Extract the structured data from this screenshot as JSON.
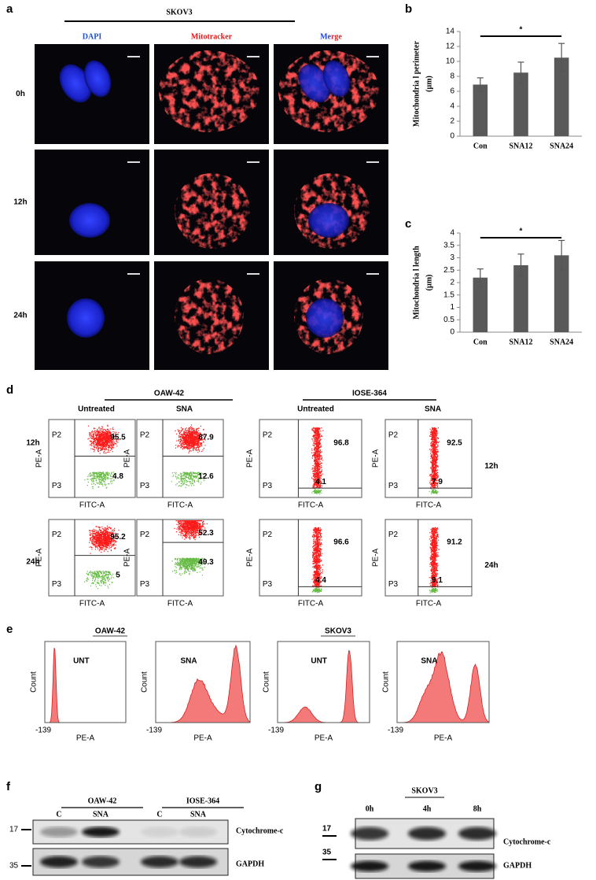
{
  "panel_labels": [
    "a",
    "b",
    "c",
    "d",
    "e",
    "f",
    "g"
  ],
  "microscopy": {
    "cell_line": "SKOV3",
    "channels": [
      "DAPI",
      "Mitotracker",
      "Merge"
    ],
    "times": [
      "0h",
      "12h",
      "24h"
    ]
  },
  "chart_data": [
    {
      "type": "bar",
      "y_label": [
        "Mitochondria l perimeter",
        "(µm)"
      ],
      "categories": [
        "Con",
        "SNA12",
        "SNA24"
      ],
      "values": [
        6.9,
        8.5,
        10.5
      ],
      "errors": [
        0.9,
        1.4,
        1.9
      ],
      "color": "#595959",
      "ylim": [
        0,
        14
      ],
      "yticks": [
        0,
        2,
        4,
        6,
        8,
        10,
        12,
        14
      ],
      "significance": "*"
    },
    {
      "type": "bar",
      "y_label": [
        "Mitochondria l length",
        "(µm)"
      ],
      "categories": [
        "Con",
        "SNA12",
        "SNA24"
      ],
      "values": [
        2.2,
        2.7,
        3.1
      ],
      "errors": [
        0.35,
        0.45,
        0.6
      ],
      "color": "#595959",
      "ylim": [
        0,
        4
      ],
      "yticks": [
        0,
        0.5,
        1,
        1.5,
        2,
        2.5,
        3,
        3.5,
        4
      ],
      "significance": "*"
    }
  ],
  "flow": {
    "groups": [
      {
        "name": "OAW-42",
        "conditions": [
          "Untreated",
          "SNA"
        ],
        "values": [
          [
            [
              95.5,
              4.8
            ],
            [
              87.9,
              12.6
            ]
          ],
          [
            [
              95.2,
              5
            ],
            [
              52.3,
              49.3
            ]
          ]
        ]
      },
      {
        "name": "IOSE-364",
        "conditions": [
          "Untreated",
          "SNA"
        ],
        "values": [
          [
            [
              96.8,
              4.1
            ],
            [
              92.5,
              7.9
            ]
          ],
          [
            [
              96.6,
              4.4
            ],
            [
              91.2,
              9.1
            ]
          ]
        ]
      }
    ],
    "times": [
      "12h",
      "24h"
    ],
    "gates": [
      "P2",
      "P3"
    ],
    "x_label": "FITC-A",
    "y_label": "PE-A"
  },
  "histograms": {
    "groups": [
      {
        "name": "OAW-42",
        "labels": [
          "UNT",
          "SNA"
        ]
      },
      {
        "name": "SKOV3",
        "labels": [
          "UNT",
          "SNA"
        ]
      }
    ],
    "x_label": "PE-A",
    "y_label": "Count",
    "x_min_label": "-139"
  },
  "blot_f": {
    "groups": [
      {
        "name": "OAW-42",
        "lanes": [
          "C",
          "SNA"
        ]
      },
      {
        "name": "IOSE-364",
        "lanes": [
          "C",
          "SNA"
        ]
      }
    ],
    "markers": [
      17,
      35
    ],
    "proteins": [
      "Cytochrome-c",
      "GAPDH"
    ]
  },
  "blot_g": {
    "cell_line": "SKOV3",
    "lanes": [
      "0h",
      "4h",
      "8h"
    ],
    "markers": [
      17,
      35
    ],
    "proteins": [
      "Cytochrome-c",
      "GAPDH"
    ]
  }
}
